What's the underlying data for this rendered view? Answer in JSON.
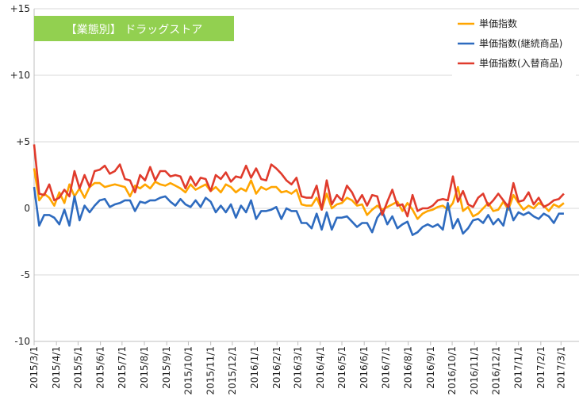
{
  "chart_data": {
    "type": "line",
    "title": "【業態別】 ドラッグストア",
    "title_bg_color": "#92d050",
    "y_ticks": [
      15,
      10,
      5,
      0,
      -5,
      -10
    ],
    "y_tick_labels": [
      "+15",
      "+10",
      "+5",
      "0",
      "-5",
      "-10"
    ],
    "ylim": [
      -10,
      15
    ],
    "grid": "horizontal",
    "legend_position": "top-right",
    "x_tick_labels": [
      "2015/3/1",
      "2015/4/1",
      "2015/5/1",
      "2015/6/1",
      "2015/7/1",
      "2015/8/1",
      "2015/9/1",
      "2015/10/1",
      "2015/11/1",
      "2015/12/1",
      "2016/1/1",
      "2016/2/1",
      "2016/3/1",
      "2016/4/1",
      "2016/5/1",
      "2016/6/1",
      "2016/7/1",
      "2016/8/1",
      "2016/9/1",
      "2016/10/1",
      "2016/11/1",
      "2016/12/1",
      "2017/1/1",
      "2017/2/1",
      "2017/3/1"
    ],
    "x_start": "2015/3/1",
    "x_end": "2017/3/26",
    "x_step_days": 7,
    "series": [
      {
        "name": "単価指数",
        "color": "#ffa500",
        "values": [
          3.0,
          0.6,
          1.1,
          0.8,
          0.2,
          1.2,
          0.4,
          1.8,
          0.9,
          1.5,
          0.8,
          1.6,
          1.9,
          1.9,
          1.6,
          1.7,
          1.8,
          1.7,
          1.6,
          0.9,
          1.7,
          1.5,
          1.8,
          1.5,
          2.0,
          1.8,
          1.7,
          1.9,
          1.7,
          1.5,
          1.2,
          1.8,
          1.4,
          1.6,
          1.8,
          1.3,
          1.6,
          1.2,
          1.8,
          1.6,
          1.2,
          1.5,
          1.3,
          2.1,
          1.1,
          1.6,
          1.4,
          1.6,
          1.6,
          1.2,
          1.3,
          1.1,
          1.4,
          0.3,
          0.2,
          0.2,
          0.8,
          -0.1,
          1.1,
          0.0,
          0.3,
          0.4,
          0.8,
          0.6,
          0.2,
          0.3,
          -0.5,
          -0.1,
          0.2,
          -0.1,
          0.1,
          0.3,
          0.5,
          -0.2,
          0.4,
          -0.1,
          -0.8,
          -0.4,
          -0.2,
          -0.1,
          0.1,
          0.2,
          -0.1,
          0.4,
          1.6,
          -0.2,
          0.1,
          -0.6,
          -0.4,
          0.0,
          0.4,
          -0.2,
          -0.1,
          0.5,
          -0.1,
          1.0,
          0.4,
          -0.1,
          0.2,
          0.0,
          0.4,
          0.2,
          -0.2,
          0.3,
          0.1,
          0.4
        ]
      },
      {
        "name": "単価指数(継続商品)",
        "color": "#2e6bbf",
        "values": [
          1.6,
          -1.3,
          -0.5,
          -0.5,
          -0.7,
          -1.2,
          -0.1,
          -1.3,
          0.9,
          -0.9,
          0.2,
          -0.3,
          0.2,
          0.6,
          0.7,
          0.1,
          0.3,
          0.4,
          0.6,
          0.6,
          -0.2,
          0.5,
          0.4,
          0.6,
          0.6,
          0.8,
          0.9,
          0.5,
          0.2,
          0.7,
          0.3,
          0.1,
          0.6,
          0.1,
          0.8,
          0.5,
          -0.3,
          0.2,
          -0.3,
          0.3,
          -0.7,
          0.2,
          -0.3,
          0.6,
          -0.8,
          -0.2,
          -0.2,
          -0.1,
          0.1,
          -0.8,
          0.0,
          -0.2,
          -0.2,
          -1.1,
          -1.1,
          -1.5,
          -0.4,
          -1.6,
          -0.3,
          -1.6,
          -0.7,
          -0.7,
          -0.6,
          -1.0,
          -1.4,
          -1.1,
          -1.1,
          -1.8,
          -0.7,
          -0.2,
          -1.2,
          -0.6,
          -1.5,
          -1.2,
          -1.0,
          -2.0,
          -1.8,
          -1.4,
          -1.2,
          -1.4,
          -1.2,
          -1.6,
          0.4,
          -1.5,
          -0.8,
          -1.9,
          -1.5,
          -0.9,
          -0.8,
          -1.1,
          -0.5,
          -1.2,
          -0.8,
          -1.3,
          0.3,
          -0.9,
          -0.3,
          -0.5,
          -0.3,
          -0.6,
          -0.8,
          -0.4,
          -0.6,
          -1.1,
          -0.4,
          -0.4
        ]
      },
      {
        "name": "単価指数(入替商品)",
        "color": "#e03b2c",
        "values": [
          4.8,
          1.1,
          1.0,
          1.8,
          0.6,
          0.8,
          1.4,
          0.9,
          2.8,
          1.5,
          2.5,
          1.6,
          2.8,
          2.9,
          3.2,
          2.6,
          2.8,
          3.3,
          2.2,
          2.1,
          1.2,
          2.5,
          2.1,
          3.1,
          2.1,
          2.8,
          2.8,
          2.4,
          2.5,
          2.4,
          1.5,
          2.4,
          1.7,
          2.3,
          2.2,
          1.3,
          2.5,
          2.2,
          2.7,
          2.0,
          2.4,
          2.3,
          3.2,
          2.3,
          3.0,
          2.2,
          2.1,
          3.3,
          3.0,
          2.6,
          2.1,
          1.8,
          2.3,
          0.9,
          0.8,
          0.8,
          1.7,
          -0.1,
          2.1,
          0.3,
          1.0,
          0.6,
          1.7,
          1.2,
          0.4,
          1.0,
          0.2,
          1.0,
          0.9,
          -0.5,
          0.5,
          1.4,
          0.2,
          0.3,
          -0.6,
          1.0,
          -0.2,
          0.0,
          0.0,
          0.2,
          0.6,
          0.7,
          0.6,
          2.4,
          0.5,
          1.3,
          0.3,
          0.1,
          0.8,
          1.1,
          0.2,
          0.6,
          1.1,
          0.6,
          0.1,
          1.9,
          0.5,
          0.6,
          1.2,
          0.3,
          0.8,
          0.1,
          0.3,
          0.6,
          0.7,
          1.1
        ]
      }
    ]
  }
}
